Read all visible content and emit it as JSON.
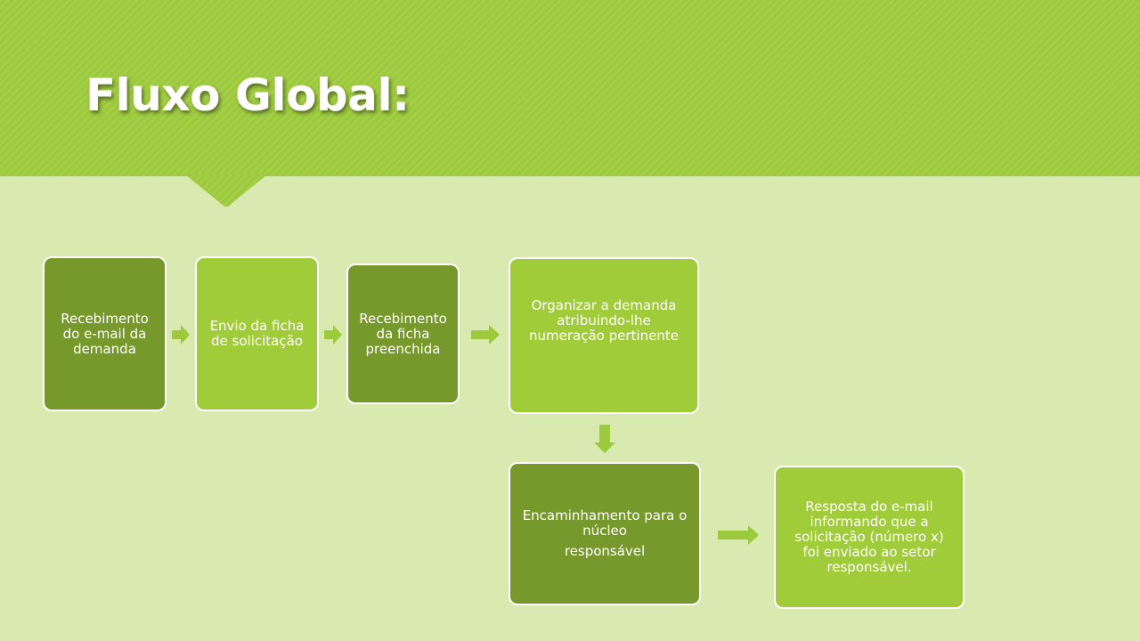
{
  "slide": {
    "title": "Fluxo Global:"
  },
  "flow": {
    "steps": [
      {
        "text": "Recebimento do e-mail da demanda"
      },
      {
        "text": "Envio da ficha de solicitação"
      },
      {
        "text": "Recebimento da ficha preenchida"
      },
      {
        "text": "Organizar a demanda atribuindo-lhe numeração pertinente"
      },
      {
        "text": "Encaminhamento para o núcleo",
        "text2": "responsável"
      },
      {
        "text": "Resposta do e-mail informando que a solicitação (número x) foi enviado ao setor",
        "text2": "responsável."
      }
    ]
  },
  "colors": {
    "header": "#9dca3c",
    "background": "#d9eab0",
    "box_dark": "#77982a",
    "box_light": "#a0cc3a",
    "arrow": "#9dca3c"
  }
}
